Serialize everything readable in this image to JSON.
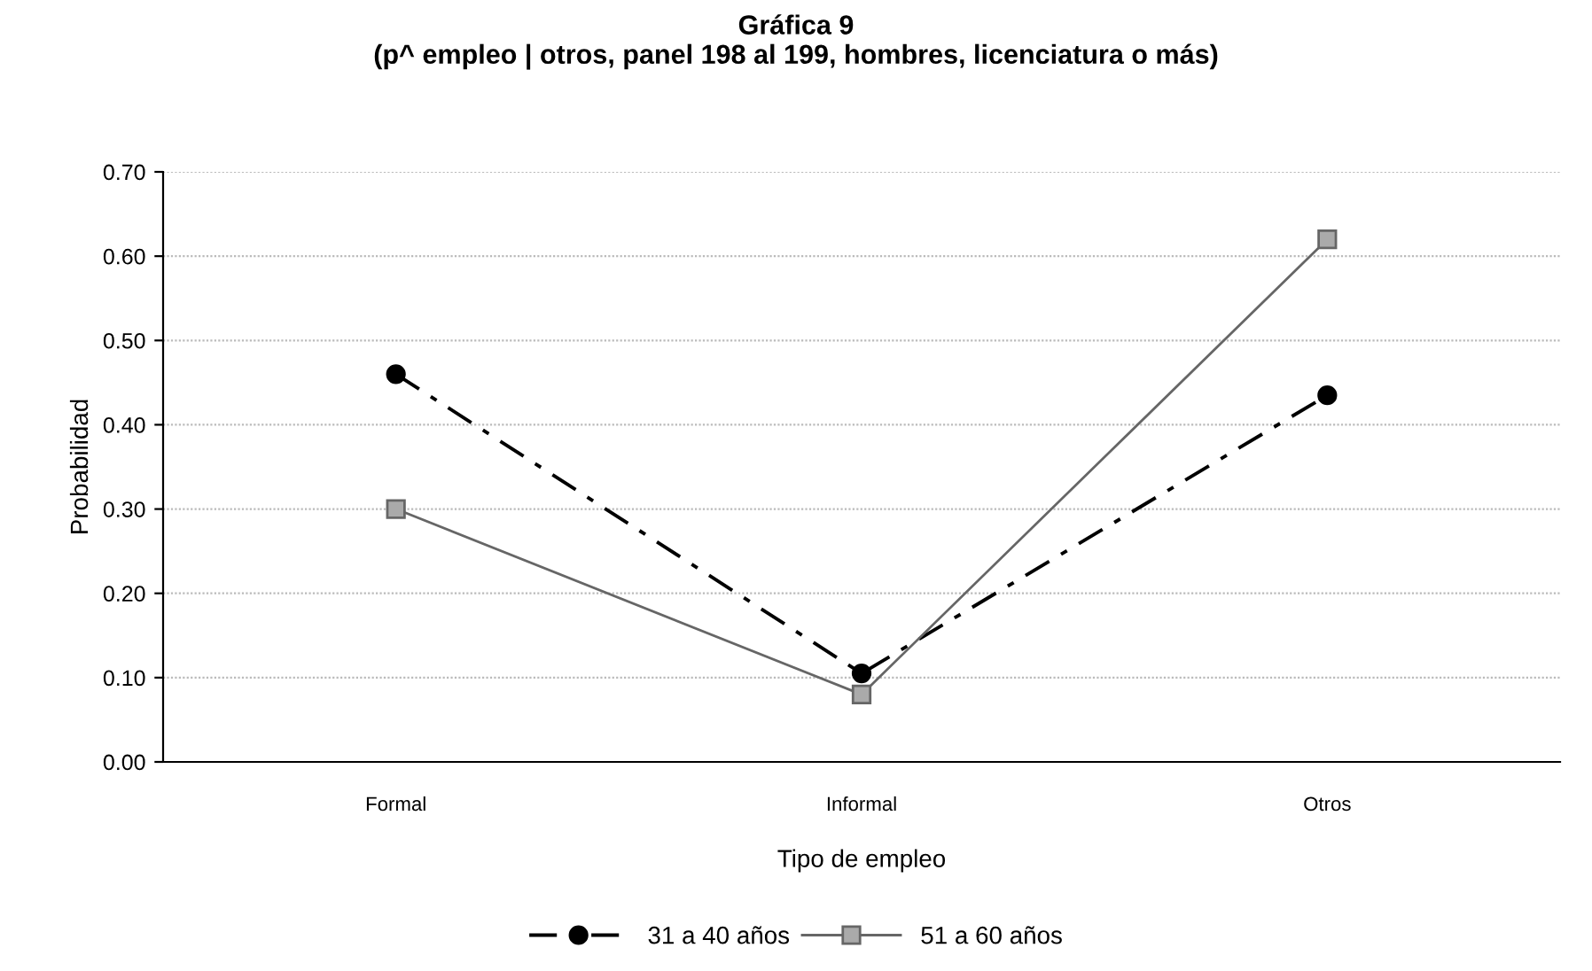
{
  "chart_data": {
    "type": "line",
    "title": "Gráfica 9\n(p^ empleo | otros, panel 198 al 199, hombres, licenciatura o más)",
    "xlabel": "Tipo de empleo",
    "ylabel": "Probabilidad",
    "categories": [
      "Formal",
      "Informal",
      "Otros"
    ],
    "series": [
      {
        "name": "31 a 40 años",
        "color": "#000000",
        "values": [
          0.46,
          0.105,
          0.435
        ],
        "marker": "circle",
        "line_style": "dashed"
      },
      {
        "name": "51 a 60 años",
        "color": "#666666",
        "values": [
          0.3,
          0.08,
          0.62
        ],
        "marker": "square",
        "line_style": "solid"
      }
    ],
    "ylim": [
      0,
      0.7
    ],
    "yticks": [
      {
        "value": 0,
        "label": "0.00"
      },
      {
        "value": 0.1,
        "label": "0.10"
      },
      {
        "value": 0.2,
        "label": "0.20"
      },
      {
        "value": 0.3,
        "label": "0.30"
      },
      {
        "value": 0.4,
        "label": "0.40"
      },
      {
        "value": 0.5,
        "label": "0.50"
      },
      {
        "value": 0.6,
        "label": "0.60"
      },
      {
        "value": 0.7,
        "label": "0.70"
      }
    ],
    "grid": "y",
    "legend": "bottom"
  }
}
